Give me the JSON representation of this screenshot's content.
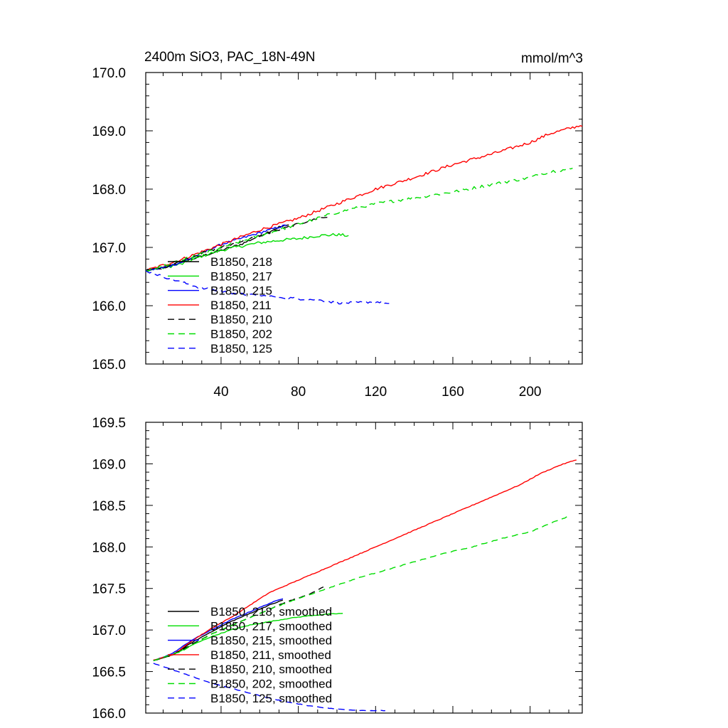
{
  "chart_data": [
    {
      "type": "line",
      "title_left": "2400m SiO3, PAC_18N-49N",
      "title_right": "mmol/m^3",
      "xlim": [
        1,
        227
      ],
      "ylim": [
        165.0,
        170.0
      ],
      "x_ticks": [
        40,
        80,
        120,
        160,
        200
      ],
      "x_tick_labels": [
        "40",
        "80",
        "120",
        "160",
        "200"
      ],
      "y_ticks": [
        165.0,
        166.0,
        167.0,
        168.0,
        169.0,
        170.0
      ],
      "y_tick_labels": [
        "165.0",
        "166.0",
        "167.0",
        "168.0",
        "169.0",
        "170.0"
      ],
      "legend_position": "lower-left",
      "series": [
        {
          "name": "B1850, 218",
          "color": "#000000",
          "dash": "solid",
          "noise": 0.02,
          "points": [
            [
              1,
              166.6
            ],
            [
              10,
              166.65
            ],
            [
              20,
              166.75
            ],
            [
              30,
              166.85
            ],
            [
              40,
              166.95
            ],
            [
              50,
              167.05
            ],
            [
              60,
              167.2
            ],
            [
              70,
              167.35
            ],
            [
              75,
              167.38
            ]
          ]
        },
        {
          "name": "B1850, 217",
          "color": "#00dd00",
          "dash": "solid",
          "noise": 0.025,
          "points": [
            [
              1,
              166.6
            ],
            [
              10,
              166.65
            ],
            [
              20,
              166.72
            ],
            [
              30,
              166.85
            ],
            [
              40,
              166.95
            ],
            [
              50,
              167.02
            ],
            [
              60,
              167.08
            ],
            [
              70,
              167.12
            ],
            [
              80,
              167.15
            ],
            [
              90,
              167.2
            ],
            [
              100,
              167.22
            ],
            [
              106,
              167.2
            ]
          ]
        },
        {
          "name": "B1850, 215",
          "color": "#0000ff",
          "dash": "solid",
          "noise": 0.02,
          "points": [
            [
              1,
              166.6
            ],
            [
              10,
              166.65
            ],
            [
              20,
              166.75
            ],
            [
              30,
              166.9
            ],
            [
              40,
              167.05
            ],
            [
              50,
              167.15
            ],
            [
              60,
              167.25
            ],
            [
              70,
              167.35
            ],
            [
              74,
              167.38
            ]
          ]
        },
        {
          "name": "B1850, 211",
          "color": "#ff0000",
          "dash": "solid",
          "noise": 0.025,
          "points": [
            [
              1,
              166.6
            ],
            [
              20,
              166.8
            ],
            [
              40,
              167.05
            ],
            [
              60,
              167.3
            ],
            [
              80,
              167.5
            ],
            [
              100,
              167.75
            ],
            [
              120,
              168.0
            ],
            [
              140,
              168.2
            ],
            [
              160,
              168.42
            ],
            [
              180,
              168.6
            ],
            [
              200,
              168.8
            ],
            [
              210,
              168.95
            ],
            [
              227,
              169.1
            ]
          ]
        },
        {
          "name": "B1850, 210",
          "color": "#000000",
          "dash": "dashed",
          "noise": 0.02,
          "points": [
            [
              1,
              166.6
            ],
            [
              10,
              166.65
            ],
            [
              20,
              166.78
            ],
            [
              30,
              166.9
            ],
            [
              40,
              167.0
            ],
            [
              50,
              167.1
            ],
            [
              60,
              167.2
            ],
            [
              70,
              167.3
            ],
            [
              80,
              167.4
            ],
            [
              90,
              167.5
            ],
            [
              95,
              167.52
            ]
          ]
        },
        {
          "name": "B1850, 202",
          "color": "#00dd00",
          "dash": "dashed",
          "noise": 0.025,
          "points": [
            [
              1,
              166.6
            ],
            [
              20,
              166.78
            ],
            [
              40,
              167.0
            ],
            [
              60,
              167.2
            ],
            [
              80,
              167.4
            ],
            [
              100,
              167.6
            ],
            [
              120,
              167.75
            ],
            [
              140,
              167.85
            ],
            [
              160,
              167.95
            ],
            [
              180,
              168.08
            ],
            [
              200,
              168.2
            ],
            [
              210,
              168.3
            ],
            [
              222,
              168.35
            ]
          ]
        },
        {
          "name": "B1850, 125",
          "color": "#0000ff",
          "dash": "dashed",
          "noise": 0.02,
          "points": [
            [
              1,
              166.6
            ],
            [
              10,
              166.5
            ],
            [
              20,
              166.4
            ],
            [
              30,
              166.3
            ],
            [
              40,
              166.25
            ],
            [
              50,
              166.2
            ],
            [
              60,
              166.17
            ],
            [
              70,
              166.15
            ],
            [
              80,
              166.12
            ],
            [
              90,
              166.1
            ],
            [
              100,
              166.05
            ],
            [
              110,
              166.05
            ],
            [
              120,
              166.07
            ],
            [
              127,
              166.03
            ]
          ]
        }
      ]
    },
    {
      "type": "line",
      "xlim": [
        1,
        227
      ],
      "ylim": [
        166.0,
        169.5
      ],
      "x_ticks": [
        40,
        80,
        120,
        160,
        200
      ],
      "x_tick_labels": [],
      "y_ticks": [
        166.0,
        166.5,
        167.0,
        167.5,
        168.0,
        168.5,
        169.0,
        169.5
      ],
      "y_tick_labels": [
        "166.0",
        "166.5",
        "167.0",
        "167.5",
        "168.0",
        "168.5",
        "169.0",
        "169.5"
      ],
      "legend_position": "lower-left",
      "series": [
        {
          "name": "B1850, 218, smoothed",
          "color": "#000000",
          "dash": "solid",
          "noise": 0.004,
          "points": [
            [
              5,
              166.63
            ],
            [
              15,
              166.7
            ],
            [
              25,
              166.85
            ],
            [
              35,
              166.98
            ],
            [
              45,
              167.1
            ],
            [
              55,
              167.2
            ],
            [
              65,
              167.3
            ],
            [
              72,
              167.36
            ]
          ]
        },
        {
          "name": "B1850, 217, smoothed",
          "color": "#00dd00",
          "dash": "solid",
          "noise": 0.004,
          "points": [
            [
              5,
              166.63
            ],
            [
              15,
              166.7
            ],
            [
              25,
              166.82
            ],
            [
              35,
              166.92
            ],
            [
              45,
              167.0
            ],
            [
              55,
              167.06
            ],
            [
              65,
              167.1
            ],
            [
              75,
              167.14
            ],
            [
              85,
              167.17
            ],
            [
              95,
              167.19
            ],
            [
              103,
              167.2
            ]
          ]
        },
        {
          "name": "B1850, 215, smoothed",
          "color": "#0000ff",
          "dash": "solid",
          "noise": 0.004,
          "points": [
            [
              5,
              166.63
            ],
            [
              15,
              166.72
            ],
            [
              25,
              166.88
            ],
            [
              35,
              167.0
            ],
            [
              45,
              167.12
            ],
            [
              55,
              167.22
            ],
            [
              65,
              167.32
            ],
            [
              72,
              167.38
            ]
          ]
        },
        {
          "name": "B1850, 211, smoothed",
          "color": "#ff0000",
          "dash": "solid",
          "noise": 0.004,
          "points": [
            [
              5,
              166.64
            ],
            [
              15,
              166.7
            ],
            [
              25,
              166.87
            ],
            [
              35,
              167.02
            ],
            [
              45,
              167.15
            ],
            [
              55,
              167.3
            ],
            [
              65,
              167.45
            ],
            [
              75,
              167.55
            ],
            [
              85,
              167.65
            ],
            [
              95,
              167.75
            ],
            [
              105,
              167.85
            ],
            [
              115,
              167.95
            ],
            [
              125,
              168.05
            ],
            [
              135,
              168.15
            ],
            [
              145,
              168.25
            ],
            [
              155,
              168.35
            ],
            [
              165,
              168.45
            ],
            [
              175,
              168.55
            ],
            [
              185,
              168.65
            ],
            [
              195,
              168.75
            ],
            [
              205,
              168.88
            ],
            [
              215,
              168.98
            ],
            [
              224,
              169.05
            ]
          ]
        },
        {
          "name": "B1850, 210, smoothed",
          "color": "#000000",
          "dash": "dashed",
          "noise": 0.004,
          "points": [
            [
              5,
              166.63
            ],
            [
              15,
              166.7
            ],
            [
              25,
              166.83
            ],
            [
              35,
              166.95
            ],
            [
              45,
              167.05
            ],
            [
              55,
              167.15
            ],
            [
              65,
              167.25
            ],
            [
              75,
              167.35
            ],
            [
              85,
              167.42
            ],
            [
              93,
              167.52
            ]
          ]
        },
        {
          "name": "B1850, 202, smoothed",
          "color": "#00dd00",
          "dash": "dashed",
          "noise": 0.004,
          "points": [
            [
              5,
              166.63
            ],
            [
              20,
              166.75
            ],
            [
              35,
              166.95
            ],
            [
              50,
              167.1
            ],
            [
              65,
              167.25
            ],
            [
              80,
              167.38
            ],
            [
              95,
              167.5
            ],
            [
              110,
              167.62
            ],
            [
              125,
              167.72
            ],
            [
              140,
              167.82
            ],
            [
              155,
              167.92
            ],
            [
              170,
              168.0
            ],
            [
              185,
              168.1
            ],
            [
              200,
              168.18
            ],
            [
              210,
              168.28
            ],
            [
              219,
              168.36
            ]
          ]
        },
        {
          "name": "B1850, 125, smoothed",
          "color": "#0000ff",
          "dash": "dashed",
          "noise": 0.003,
          "points": [
            [
              5,
              166.6
            ],
            [
              15,
              166.52
            ],
            [
              25,
              166.44
            ],
            [
              35,
              166.36
            ],
            [
              45,
              166.3
            ],
            [
              55,
              166.24
            ],
            [
              65,
              166.18
            ],
            [
              75,
              166.13
            ],
            [
              85,
              166.09
            ],
            [
              95,
              166.06
            ],
            [
              105,
              166.04
            ],
            [
              115,
              166.03
            ],
            [
              125,
              166.03
            ]
          ]
        }
      ]
    }
  ]
}
